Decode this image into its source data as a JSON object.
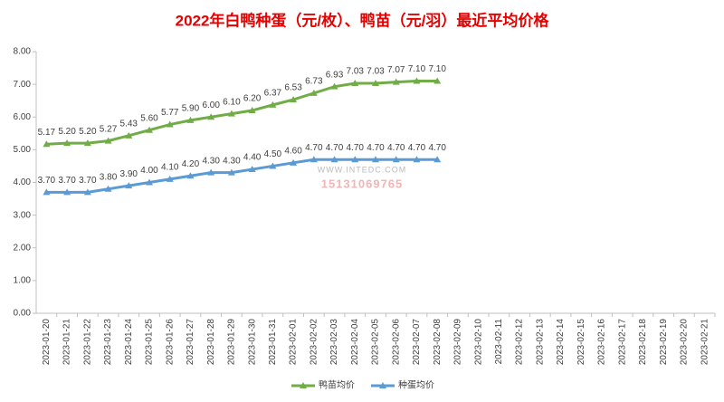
{
  "chart_data": {
    "type": "line",
    "title": "2022年白鸭种蛋（元/枚）、鸭苗（元/羽）最近平均价格",
    "categories": [
      "2023-01-20",
      "2023-01-21",
      "2023-01-22",
      "2023-01-23",
      "2023-01-24",
      "2023-01-25",
      "2023-01-26",
      "2023-01-27",
      "2023-01-28",
      "2023-01-29",
      "2023-01-30",
      "2023-01-31",
      "2023-02-01",
      "2023-02-02",
      "2023-02-03",
      "2023-02-04",
      "2023-02-05",
      "2023-02-06",
      "2023-02-07",
      "2023-02-08",
      "2023-02-09",
      "2023-02-10",
      "2023-02-11",
      "2023-02-12",
      "2023-02-13",
      "2023-02-14",
      "2023-02-15",
      "2023-02-16",
      "2023-02-17",
      "2023-02-18",
      "2023-02-19",
      "2023-02-20",
      "2023-02-21"
    ],
    "series": [
      {
        "name": "鸭苗均价",
        "color": "#70ad47",
        "values": [
          5.17,
          5.2,
          5.2,
          5.27,
          5.43,
          5.6,
          5.77,
          5.9,
          6.0,
          6.1,
          6.2,
          6.37,
          6.53,
          6.73,
          6.93,
          7.03,
          7.03,
          7.07,
          7.1,
          7.1,
          null,
          null,
          null,
          null,
          null,
          null,
          null,
          null,
          null,
          null,
          null,
          null,
          null
        ],
        "value_labels": [
          "5.17",
          "5.20",
          "5.20",
          "5.27",
          "5.43",
          "5.60",
          "5.77",
          "5.90",
          "6.00",
          "6.10",
          "6.20",
          "6.37",
          "6.53",
          "6.73",
          "6.93",
          "7.03",
          "7.03",
          "7.07",
          "7.10",
          "7.10",
          null,
          null,
          null,
          null,
          null,
          null,
          null,
          null,
          null,
          null,
          null,
          null,
          null
        ]
      },
      {
        "name": "种蛋均价",
        "color": "#5b9bd5",
        "values": [
          3.7,
          3.7,
          3.7,
          3.8,
          3.9,
          4.0,
          4.1,
          4.2,
          4.3,
          4.3,
          4.4,
          4.5,
          4.6,
          4.7,
          4.7,
          4.7,
          4.7,
          4.7,
          4.7,
          4.7,
          null,
          null,
          null,
          null,
          null,
          null,
          null,
          null,
          null,
          null,
          null,
          null,
          null
        ],
        "value_labels": [
          "3.70",
          "3.70",
          "3.70",
          "3.80",
          "3.90",
          "4.00",
          "4.10",
          "4.20",
          "4.30",
          "4.30",
          "4.40",
          "4.50",
          "4.60",
          "4.70",
          "4.70",
          "4.70",
          "4.70",
          "4.70",
          "4.70",
          "4.70",
          null,
          null,
          null,
          null,
          null,
          null,
          null,
          null,
          null,
          null,
          null,
          null,
          null
        ]
      }
    ],
    "ylim": [
      0,
      8
    ],
    "yticks": [
      {
        "value": 0,
        "label": "0.00"
      },
      {
        "value": 1,
        "label": "1.00"
      },
      {
        "value": 2,
        "label": "2.00"
      },
      {
        "value": 3,
        "label": "3.00"
      },
      {
        "value": 4,
        "label": "4.00"
      },
      {
        "value": 5,
        "label": "5.00"
      },
      {
        "value": 6,
        "label": "6.00"
      },
      {
        "value": 7,
        "label": "7.00"
      },
      {
        "value": 8,
        "label": "8.00"
      }
    ],
    "legend": "bottom",
    "watermark_url": "WWW.INTEDC.COM",
    "watermark_phone": "15131069765"
  }
}
